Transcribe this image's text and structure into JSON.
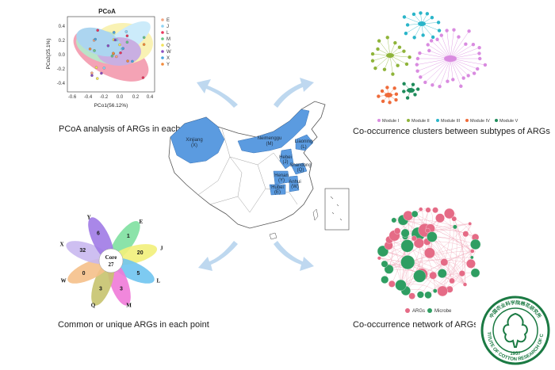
{
  "captions": {
    "pcoa": "PCoA analysis of ARGs in each point",
    "cooc_clusters": "Co-occurrence clusters between subtypes of ARGs",
    "venn": "Common or unique ARGs in each point",
    "network": "Co-occurrence network of ARGs and host microb"
  },
  "pcoa": {
    "title": "PCoA",
    "xlabel": "PCo1(56.12%)",
    "ylabel": "PCo2(25.1%)",
    "xticks": [
      "-0.6",
      "-0.4",
      "-0.2",
      "0.0",
      "0.2",
      "0.4"
    ],
    "yticks": [
      "0.4",
      "0.2",
      "0.0",
      "-0.2",
      "-0.4"
    ],
    "legend": [
      {
        "label": "E",
        "color": "#f4a582"
      },
      {
        "label": "J",
        "color": "#8fd3f4"
      },
      {
        "label": "L",
        "color": "#e8365d"
      },
      {
        "label": "M",
        "color": "#67c587"
      },
      {
        "label": "Q",
        "color": "#f2e35b"
      },
      {
        "label": "W",
        "color": "#8a4fc0"
      },
      {
        "label": "X",
        "color": "#4aa3df"
      },
      {
        "label": "Y",
        "color": "#f28a3a"
      }
    ]
  },
  "map": {
    "provinces": [
      {
        "name": "Xinjiang",
        "code": "(X)"
      },
      {
        "name": "Neimenggu",
        "code": "(M)"
      },
      {
        "name": "Liaoning",
        "code": "(L)"
      },
      {
        "name": "Hebei",
        "code": "(J)"
      },
      {
        "name": "Shandong",
        "code": "(Q)"
      },
      {
        "name": "Henan",
        "code": "(Y)"
      },
      {
        "name": "Hubei",
        "code": "(E)"
      },
      {
        "name": "Anhui",
        "code": "(W)"
      }
    ],
    "accent": "#5b9be0"
  },
  "venn": {
    "core_label": "Core",
    "core_value": "27",
    "petals": [
      {
        "letter": "E",
        "value": "1",
        "color": "#7ee0a0"
      },
      {
        "letter": "J",
        "value": "20",
        "color": "#f2f07a"
      },
      {
        "letter": "L",
        "value": "5",
        "color": "#6fc4ef"
      },
      {
        "letter": "M",
        "value": "3",
        "color": "#f07ad8"
      },
      {
        "letter": "Q",
        "value": "3",
        "color": "#c7c36e"
      },
      {
        "letter": "W",
        "value": "0",
        "color": "#f5c08a"
      },
      {
        "letter": "X",
        "value": "32",
        "color": "#c9b8ef"
      },
      {
        "letter": "Y",
        "value": "6",
        "color": "#a07ae6"
      }
    ]
  },
  "modules": [
    {
      "label": "Module I",
      "color": "#d98be0"
    },
    {
      "label": "Module II",
      "color": "#8fb43a"
    },
    {
      "label": "Module III",
      "color": "#2ab5c9"
    },
    {
      "label": "Module IV",
      "color": "#ef6b3a"
    },
    {
      "label": "Module V",
      "color": "#1d8b5a"
    }
  ],
  "network": {
    "legend": [
      {
        "label": "ARGs",
        "color": "#e56b86"
      },
      {
        "label": "Microbe",
        "color": "#2f9e62"
      }
    ]
  },
  "seal": {
    "top_text": "中国农业科学院棉花研究所",
    "bottom_text": "INSTITUTE OF COTTON RESEARCH OF CAAS",
    "year": "1957"
  }
}
